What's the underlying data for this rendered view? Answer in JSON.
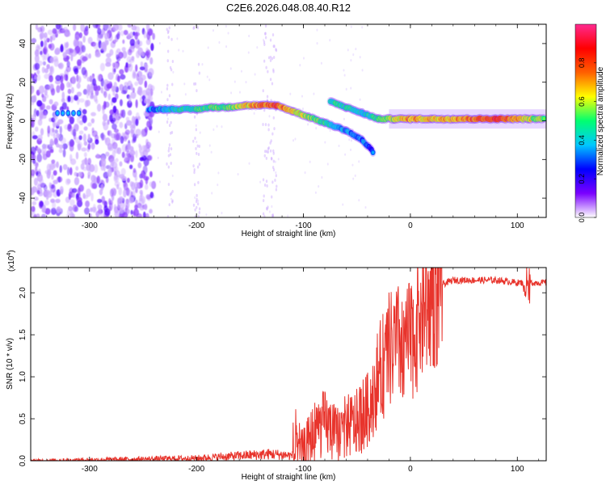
{
  "title": "C2E6.2026.048.08.40.R12",
  "colors": {
    "signal": "#e8342c",
    "axis": "#000000",
    "background": "#ffffff"
  },
  "chart_data": [
    {
      "type": "heatmap",
      "name": "spectrogram",
      "xlabel": "Height of straight line (km)",
      "ylabel": "Frequency (Hz)",
      "xlim": [
        -355,
        127
      ],
      "ylim": [
        -50,
        50
      ],
      "xticks": [
        -300,
        -200,
        -100,
        0,
        100
      ],
      "yticks": [
        -40,
        -20,
        0,
        20,
        40
      ],
      "colorbar": {
        "label": "Normalized spectral amplitude",
        "range": [
          0,
          1
        ],
        "ticks": [
          "0.0",
          "0.2",
          "0.4",
          "0.6",
          "0.8"
        ],
        "tick_values": [
          0,
          0.2,
          0.4,
          0.6,
          0.8
        ],
        "colormap": [
          "#ffffff",
          "#7a00ff",
          "#0000ff",
          "#00c8ff",
          "#00ff70",
          "#ffff00",
          "#ff6000",
          "#ff0000",
          "#ff2a90"
        ]
      },
      "noise_region": {
        "x_range": [
          -355,
          -240
        ],
        "y_range": [
          -50,
          50
        ]
      },
      "main_branch": [
        {
          "x": -245,
          "y": 6,
          "a": 0.35
        },
        {
          "x": -230,
          "y": 6,
          "a": 0.45
        },
        {
          "x": -215,
          "y": 6,
          "a": 0.5
        },
        {
          "x": -200,
          "y": 6,
          "a": 0.55
        },
        {
          "x": -185,
          "y": 7,
          "a": 0.6
        },
        {
          "x": -170,
          "y": 7,
          "a": 0.6
        },
        {
          "x": -155,
          "y": 8,
          "a": 0.7
        },
        {
          "x": -140,
          "y": 8,
          "a": 0.85
        },
        {
          "x": -125,
          "y": 8,
          "a": 0.9
        },
        {
          "x": -110,
          "y": 5,
          "a": 0.7
        },
        {
          "x": -95,
          "y": 2,
          "a": 0.65
        },
        {
          "x": -80,
          "y": -1,
          "a": 0.55
        },
        {
          "x": -60,
          "y": -5,
          "a": 0.4
        },
        {
          "x": -45,
          "y": -10,
          "a": 0.35
        },
        {
          "x": -35,
          "y": -16,
          "a": 0.3
        }
      ],
      "secondary_branch": [
        {
          "x": -75,
          "y": 10,
          "a": 0.55
        },
        {
          "x": -60,
          "y": 7,
          "a": 0.5
        },
        {
          "x": -45,
          "y": 4,
          "a": 0.45
        },
        {
          "x": -30,
          "y": 1,
          "a": 0.55
        },
        {
          "x": -15,
          "y": 1,
          "a": 0.7
        },
        {
          "x": 0,
          "y": 1,
          "a": 0.8
        },
        {
          "x": 20,
          "y": 1,
          "a": 0.75
        },
        {
          "x": 40,
          "y": 1,
          "a": 0.8
        },
        {
          "x": 60,
          "y": 1,
          "a": 0.85
        },
        {
          "x": 80,
          "y": 1,
          "a": 0.95
        },
        {
          "x": 95,
          "y": 1,
          "a": 0.85
        },
        {
          "x": 110,
          "y": 1,
          "a": 0.7
        },
        {
          "x": 125,
          "y": 1,
          "a": 0.6
        }
      ]
    },
    {
      "type": "line",
      "name": "snr",
      "xlabel": "Height of straight line (km)",
      "ylabel": "SNR (10 * v/v)",
      "y_multiplier": "(x10",
      "y_multiplier_exp": "4",
      "y_multiplier_close": ")",
      "xlim": [
        -355,
        127
      ],
      "ylim": [
        0,
        2.3
      ],
      "xticks": [
        -300,
        -200,
        -100,
        0,
        100
      ],
      "yticks": [
        "0.0",
        "0.5",
        "1.0",
        "1.5",
        "2.0"
      ],
      "ytick_values": [
        0,
        0.5,
        1.0,
        1.5,
        2.0
      ],
      "series": [
        {
          "name": "SNR",
          "x": [
            -355,
            -300,
            -250,
            -200,
            -160,
            -130,
            -110,
            -100,
            -90,
            -80,
            -70,
            -60,
            -50,
            -40,
            -30,
            -20,
            -10,
            0,
            10,
            20,
            30,
            40,
            60,
            80,
            100,
            110,
            127
          ],
          "y": [
            0.0,
            0.01,
            0.02,
            0.03,
            0.06,
            0.08,
            0.06,
            0.1,
            0.35,
            0.45,
            0.3,
            0.4,
            0.45,
            0.6,
            1.0,
            1.3,
            1.4,
            1.4,
            1.75,
            2.0,
            2.1,
            2.15,
            2.15,
            2.15,
            2.12,
            2.12,
            2.12
          ]
        }
      ]
    }
  ]
}
